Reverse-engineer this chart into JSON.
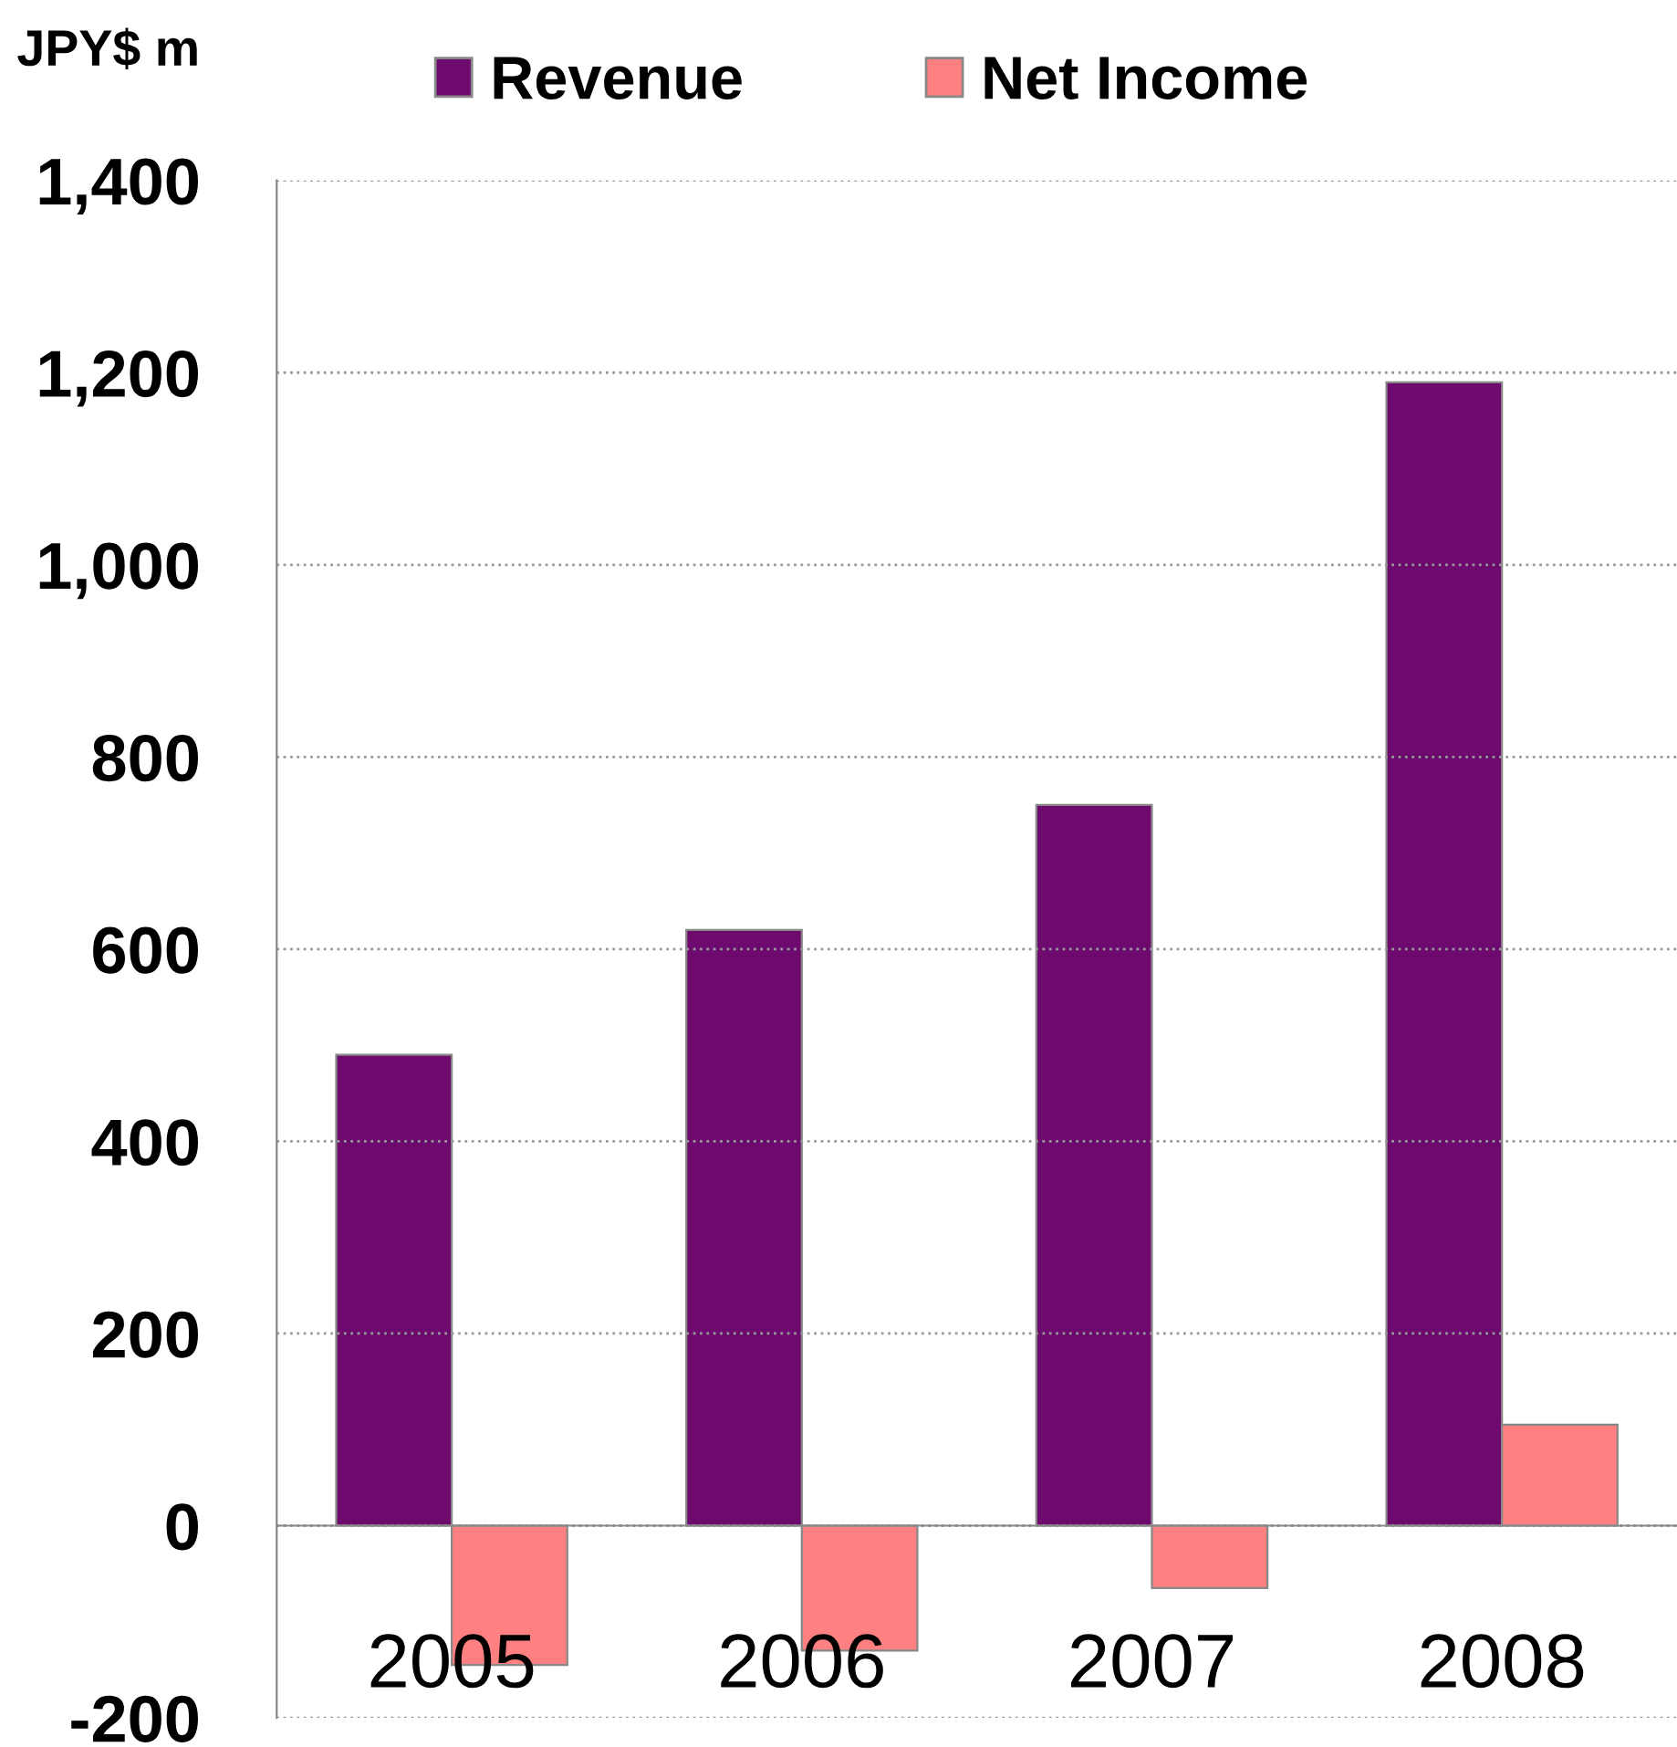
{
  "chart_data": {
    "type": "bar",
    "ylabel": "JPY$ m",
    "categories": [
      "2005",
      "2006",
      "2007",
      "2008"
    ],
    "series": [
      {
        "name": "Revenue",
        "color": "#6e0a6e",
        "values": [
          490,
          620,
          750,
          1190
        ]
      },
      {
        "name": "Net Income",
        "color": "#ff8080",
        "values": [
          -145,
          -130,
          -65,
          105
        ]
      }
    ],
    "ylim": [
      -200,
      1400
    ],
    "yticks": [
      {
        "value": -200,
        "label": "-200"
      },
      0,
      {
        "value": 200,
        "label": "200"
      },
      {
        "value": 400,
        "label": "400"
      },
      {
        "value": 600,
        "label": "600"
      },
      {
        "value": 800,
        "label": "800"
      },
      {
        "value": 1000,
        "label": "1,000"
      },
      {
        "value": 1200,
        "label": "1,200"
      },
      {
        "value": 1400,
        "label": "1,400"
      }
    ],
    "grid": "y",
    "legend": "top"
  }
}
